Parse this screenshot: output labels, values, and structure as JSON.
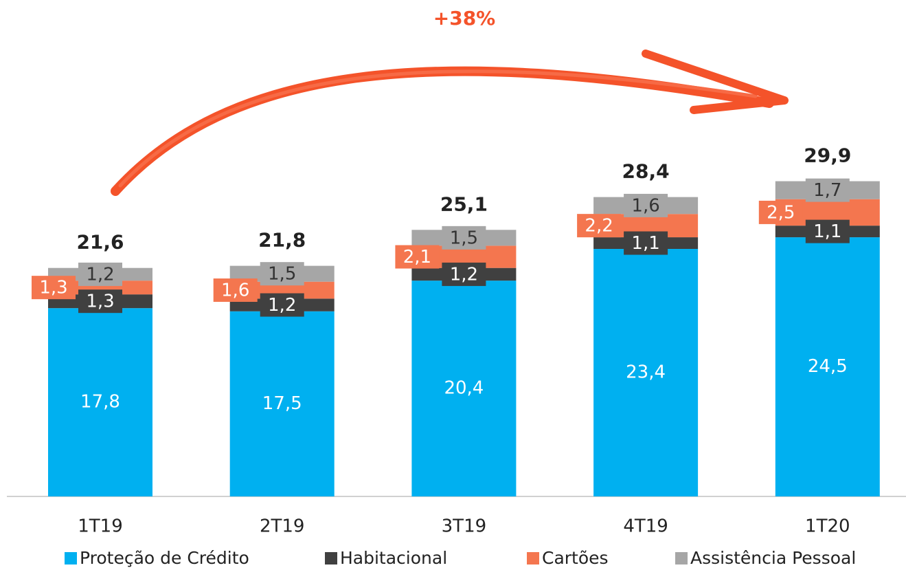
{
  "chart_data": {
    "type": "bar",
    "stacked": true,
    "annotation": "+38%",
    "categories": [
      "1T19",
      "2T19",
      "3T19",
      "4T19",
      "1T20"
    ],
    "series": [
      {
        "name": "Proteção de Crédito",
        "color": "#00b0f0",
        "values": [
          17.8,
          17.5,
          20.4,
          23.4,
          24.5
        ],
        "value_labels": [
          "17,8",
          "17,5",
          "20,4",
          "23,4",
          "24,5"
        ]
      },
      {
        "name": "Habitacional",
        "color": "#404040",
        "values": [
          1.3,
          1.2,
          1.2,
          1.1,
          1.1
        ],
        "value_labels": [
          "1,3",
          "1,2",
          "1,2",
          "1,1",
          "1,1"
        ]
      },
      {
        "name": "Cartões",
        "color": "#f4764f",
        "values": [
          1.3,
          1.6,
          2.1,
          2.2,
          2.5
        ],
        "value_labels": [
          "1,3",
          "1,6",
          "2,1",
          "2,2",
          "2,5"
        ]
      },
      {
        "name": "Assistência Pessoal",
        "color": "#a6a6a6",
        "values": [
          1.2,
          1.5,
          1.5,
          1.6,
          1.7
        ],
        "value_labels": [
          "1,2",
          "1,5",
          "1,5",
          "1,6",
          "1,7"
        ]
      }
    ],
    "totals": {
      "values": [
        21.6,
        21.8,
        25.1,
        28.4,
        29.9
      ],
      "value_labels": [
        "21,6",
        "21,8",
        "25,1",
        "28,4",
        "29,9"
      ]
    }
  }
}
